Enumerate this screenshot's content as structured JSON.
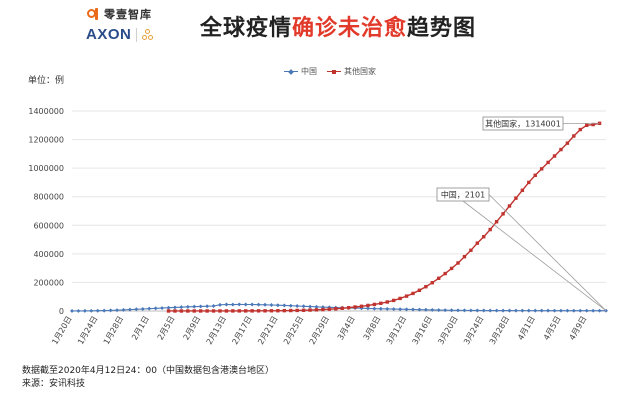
{
  "brand": {
    "name": "零壹智库",
    "logo": "AXON"
  },
  "title": {
    "part1": "全球疫情",
    "highlight": "确诊未治愈",
    "part2": "趋势图"
  },
  "unit": "单位：例",
  "footer": {
    "note": "数据截至2020年4月12日24：00（中国数据包含港澳台地区）",
    "source": "来源：安讯科技"
  },
  "chart_data": {
    "type": "line",
    "title": "全球疫情确诊未治愈趋势图",
    "xlabel": "",
    "ylabel": "单位：例",
    "ylim": [
      0,
      1400000
    ],
    "yticks": [
      0,
      200000,
      400000,
      600000,
      800000,
      1000000,
      1200000,
      1400000
    ],
    "grid": true,
    "legend_position": "top-center",
    "x_tick_labels": [
      "1月20日",
      "1月24日",
      "1月28日",
      "2月1日",
      "2月5日",
      "2月9日",
      "2月13日",
      "2月17日",
      "2月21日",
      "2月25日",
      "2月29日",
      "3月4日",
      "3月8日",
      "3月12日",
      "3月16日",
      "3月20日",
      "3月24日",
      "3月28日",
      "4月1日",
      "4月5日",
      "4月9日"
    ],
    "x_start": "2020-01-20",
    "series": [
      {
        "name": "中国",
        "color": "#4a78b8",
        "marker": "diamond",
        "values": [
          300,
          400,
          600,
          1200,
          2000,
          2800,
          4400,
          5800,
          7500,
          9700,
          12000,
          14000,
          16500,
          18500,
          20500,
          23000,
          25000,
          27000,
          29000,
          30500,
          32000,
          33500,
          35000,
          43000,
          45500,
          45000,
          46000,
          45500,
          45500,
          44500,
          43500,
          42000,
          40500,
          39000,
          37000,
          35000,
          33000,
          31000,
          29000,
          27000,
          25500,
          24000,
          22500,
          21500,
          20500,
          19500,
          18000,
          16500,
          15500,
          14500,
          13500,
          12500,
          11500,
          10500,
          9500,
          8500,
          7500,
          6500,
          5800,
          5200,
          4700,
          4300,
          3900,
          3600,
          3400,
          3200,
          3000,
          2900,
          2800,
          2700,
          2650,
          2600,
          2500,
          2400,
          2350,
          2300,
          2250,
          2200,
          2150,
          2150,
          2101,
          2101,
          2101,
          2101
        ]
      },
      {
        "name": "其他国家",
        "color": "#c0332f",
        "marker": "square",
        "start_index": 15,
        "values": [
          100,
          130,
          150,
          180,
          220,
          260,
          300,
          350,
          400,
          500,
          600,
          700,
          800,
          900,
          1100,
          1300,
          1600,
          2000,
          2500,
          3200,
          4000,
          5000,
          6500,
          8000,
          10000,
          12500,
          15500,
          19000,
          23000,
          28000,
          33000,
          39000,
          46000,
          54000,
          63000,
          74000,
          88000,
          104000,
          123000,
          145000,
          170000,
          198000,
          229000,
          262000,
          298000,
          336000,
          380000,
          425000,
          475000,
          520000,
          570000,
          625000,
          680000,
          735000,
          790000,
          845000,
          900000,
          950000,
          995000,
          1040000,
          1085000,
          1130000,
          1175000,
          1225000,
          1270000,
          1300000,
          1305000,
          1314001
        ]
      }
    ],
    "annotations": [
      {
        "series": "其他国家",
        "text": "其他国家，1314001"
      },
      {
        "series": "中国",
        "text": "中国，2101"
      }
    ]
  }
}
